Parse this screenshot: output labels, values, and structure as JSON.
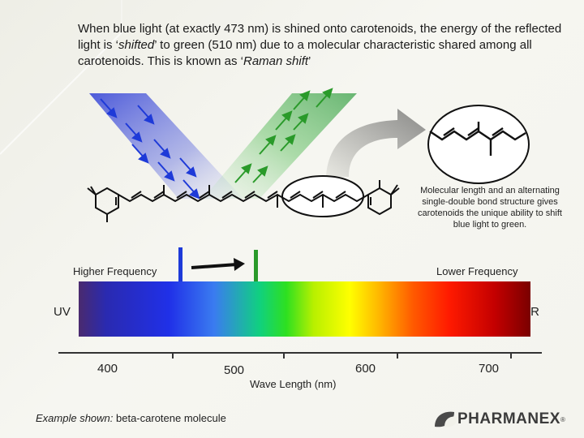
{
  "intro": {
    "part1": "When blue light (at exactly 473 nm) is shined onto carotenoids, the energy of the reflected light is ‘",
    "shifted": "shifted",
    "part2": "’ to green (510 nm) due to a molecular characteristic shared among all carotenoids. This is known as ‘",
    "raman": "Raman shift",
    "part3": "’"
  },
  "note": "Molecular length and an alternating single-double bond structure gives carotenoids the unique ability to shift blue light to green.",
  "labels": {
    "higher_frequency": "Higher Frequency",
    "lower_frequency": "Lower Frequency",
    "uv": "UV",
    "ir": "IR",
    "wavelength": "Wave Length (nm)"
  },
  "ticks": [
    "400",
    "500",
    "600",
    "700"
  ],
  "footer": {
    "prefix": "Example shown:",
    "text": " beta-carotene molecule"
  },
  "logo": {
    "name": "PHARMANEX",
    "tm": "®"
  },
  "colors": {
    "blue_light": "#1e3ad8",
    "green_light": "#2a9a2a",
    "spectrum_axis": "#333333"
  },
  "icons": [
    "blue-light-arrow-icon",
    "green-light-arrow-icon",
    "curved-arrow-icon",
    "shift-arrow-icon",
    "pharmanex-leaf-icon"
  ]
}
